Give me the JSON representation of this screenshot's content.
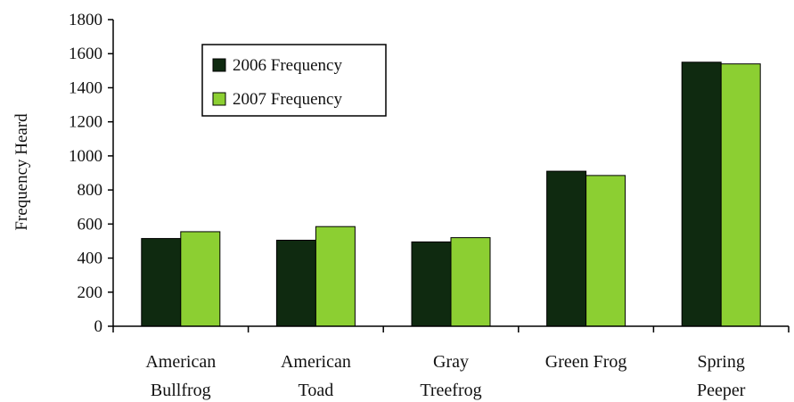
{
  "chart_data": {
    "type": "bar",
    "title": "",
    "xlabel": "",
    "ylabel": "Frequency Heard",
    "ylim": [
      0,
      1800
    ],
    "yticks": [
      0,
      200,
      400,
      600,
      800,
      1000,
      1200,
      1400,
      1600,
      1800
    ],
    "grid": false,
    "legend_position": "top-left",
    "categories": [
      [
        "American",
        "Bullfrog"
      ],
      [
        "American",
        "Toad"
      ],
      [
        "Gray",
        "Treefrog"
      ],
      [
        "Green Frog"
      ],
      [
        "Spring",
        "Peeper"
      ]
    ],
    "series": [
      {
        "name": "2006 Frequency",
        "color": "#0f2a10",
        "values": [
          515,
          505,
          495,
          910,
          1550
        ]
      },
      {
        "name": "2007 Frequency",
        "color": "#8ccf32",
        "values": [
          555,
          585,
          520,
          885,
          1540
        ]
      }
    ]
  }
}
